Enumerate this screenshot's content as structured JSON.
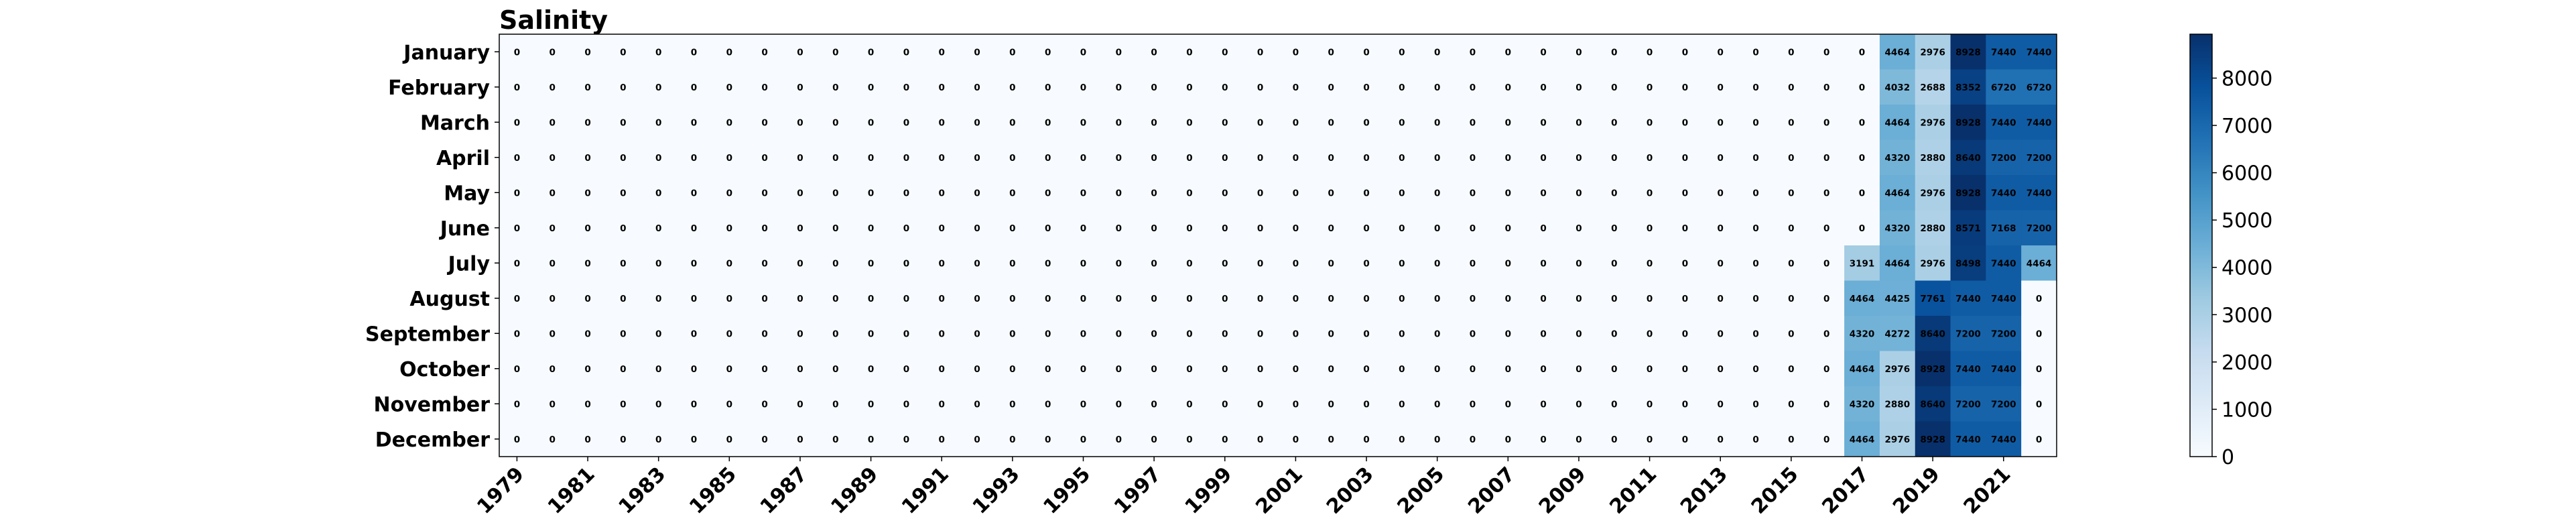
{
  "chart_data": {
    "type": "heatmap",
    "title": "Salinity",
    "colormap": "Blues",
    "years": [
      1979,
      1980,
      1981,
      1982,
      1983,
      1984,
      1985,
      1986,
      1987,
      1988,
      1989,
      1990,
      1991,
      1992,
      1993,
      1994,
      1995,
      1996,
      1997,
      1998,
      1999,
      2000,
      2001,
      2002,
      2003,
      2004,
      2005,
      2006,
      2007,
      2008,
      2009,
      2010,
      2011,
      2012,
      2013,
      2014,
      2015,
      2016,
      2017,
      2018,
      2019,
      2020,
      2021,
      2022
    ],
    "x_tick_labels": [
      "1979",
      "1981",
      "1983",
      "1985",
      "1987",
      "1989",
      "1991",
      "1993",
      "1995",
      "1997",
      "1999",
      "2001",
      "2003",
      "2005",
      "2007",
      "2009",
      "2011",
      "2013",
      "2015",
      "2017",
      "2019",
      "2021"
    ],
    "months": [
      "January",
      "February",
      "March",
      "April",
      "May",
      "June",
      "July",
      "August",
      "September",
      "October",
      "November",
      "December"
    ],
    "values": [
      [
        0,
        0,
        0,
        0,
        0,
        0,
        0,
        0,
        0,
        0,
        0,
        0,
        0,
        0,
        0,
        0,
        0,
        0,
        0,
        0,
        0,
        0,
        0,
        0,
        0,
        0,
        0,
        0,
        0,
        0,
        0,
        0,
        0,
        0,
        0,
        0,
        0,
        0,
        0,
        4464,
        2976,
        8928,
        7440,
        7440
      ],
      [
        0,
        0,
        0,
        0,
        0,
        0,
        0,
        0,
        0,
        0,
        0,
        0,
        0,
        0,
        0,
        0,
        0,
        0,
        0,
        0,
        0,
        0,
        0,
        0,
        0,
        0,
        0,
        0,
        0,
        0,
        0,
        0,
        0,
        0,
        0,
        0,
        0,
        0,
        0,
        4032,
        2688,
        8352,
        6720,
        6720
      ],
      [
        0,
        0,
        0,
        0,
        0,
        0,
        0,
        0,
        0,
        0,
        0,
        0,
        0,
        0,
        0,
        0,
        0,
        0,
        0,
        0,
        0,
        0,
        0,
        0,
        0,
        0,
        0,
        0,
        0,
        0,
        0,
        0,
        0,
        0,
        0,
        0,
        0,
        0,
        0,
        4464,
        2976,
        8928,
        7440,
        7440
      ],
      [
        0,
        0,
        0,
        0,
        0,
        0,
        0,
        0,
        0,
        0,
        0,
        0,
        0,
        0,
        0,
        0,
        0,
        0,
        0,
        0,
        0,
        0,
        0,
        0,
        0,
        0,
        0,
        0,
        0,
        0,
        0,
        0,
        0,
        0,
        0,
        0,
        0,
        0,
        0,
        4320,
        2880,
        8640,
        7200,
        7200
      ],
      [
        0,
        0,
        0,
        0,
        0,
        0,
        0,
        0,
        0,
        0,
        0,
        0,
        0,
        0,
        0,
        0,
        0,
        0,
        0,
        0,
        0,
        0,
        0,
        0,
        0,
        0,
        0,
        0,
        0,
        0,
        0,
        0,
        0,
        0,
        0,
        0,
        0,
        0,
        0,
        4464,
        2976,
        8928,
        7440,
        7440
      ],
      [
        0,
        0,
        0,
        0,
        0,
        0,
        0,
        0,
        0,
        0,
        0,
        0,
        0,
        0,
        0,
        0,
        0,
        0,
        0,
        0,
        0,
        0,
        0,
        0,
        0,
        0,
        0,
        0,
        0,
        0,
        0,
        0,
        0,
        0,
        0,
        0,
        0,
        0,
        0,
        4320,
        2880,
        8571,
        7168,
        7200
      ],
      [
        0,
        0,
        0,
        0,
        0,
        0,
        0,
        0,
        0,
        0,
        0,
        0,
        0,
        0,
        0,
        0,
        0,
        0,
        0,
        0,
        0,
        0,
        0,
        0,
        0,
        0,
        0,
        0,
        0,
        0,
        0,
        0,
        0,
        0,
        0,
        0,
        0,
        0,
        3191,
        4464,
        2976,
        8498,
        7440,
        4464
      ],
      [
        0,
        0,
        0,
        0,
        0,
        0,
        0,
        0,
        0,
        0,
        0,
        0,
        0,
        0,
        0,
        0,
        0,
        0,
        0,
        0,
        0,
        0,
        0,
        0,
        0,
        0,
        0,
        0,
        0,
        0,
        0,
        0,
        0,
        0,
        0,
        0,
        0,
        0,
        4464,
        4425,
        7761,
        7440,
        7440,
        0
      ],
      [
        0,
        0,
        0,
        0,
        0,
        0,
        0,
        0,
        0,
        0,
        0,
        0,
        0,
        0,
        0,
        0,
        0,
        0,
        0,
        0,
        0,
        0,
        0,
        0,
        0,
        0,
        0,
        0,
        0,
        0,
        0,
        0,
        0,
        0,
        0,
        0,
        0,
        0,
        4320,
        4272,
        8640,
        7200,
        7200,
        0
      ],
      [
        0,
        0,
        0,
        0,
        0,
        0,
        0,
        0,
        0,
        0,
        0,
        0,
        0,
        0,
        0,
        0,
        0,
        0,
        0,
        0,
        0,
        0,
        0,
        0,
        0,
        0,
        0,
        0,
        0,
        0,
        0,
        0,
        0,
        0,
        0,
        0,
        0,
        0,
        4464,
        2976,
        8928,
        7440,
        7440,
        0
      ],
      [
        0,
        0,
        0,
        0,
        0,
        0,
        0,
        0,
        0,
        0,
        0,
        0,
        0,
        0,
        0,
        0,
        0,
        0,
        0,
        0,
        0,
        0,
        0,
        0,
        0,
        0,
        0,
        0,
        0,
        0,
        0,
        0,
        0,
        0,
        0,
        0,
        0,
        0,
        4320,
        2880,
        8640,
        7200,
        7200,
        0
      ],
      [
        0,
        0,
        0,
        0,
        0,
        0,
        0,
        0,
        0,
        0,
        0,
        0,
        0,
        0,
        0,
        0,
        0,
        0,
        0,
        0,
        0,
        0,
        0,
        0,
        0,
        0,
        0,
        0,
        0,
        0,
        0,
        0,
        0,
        0,
        0,
        0,
        0,
        0,
        4464,
        2976,
        8928,
        7440,
        7440,
        0
      ]
    ],
    "colorbar": {
      "min": 0,
      "max": 8928,
      "ticks": [
        0,
        1000,
        2000,
        3000,
        4000,
        5000,
        6000,
        7000,
        8000
      ]
    },
    "grid": false
  }
}
